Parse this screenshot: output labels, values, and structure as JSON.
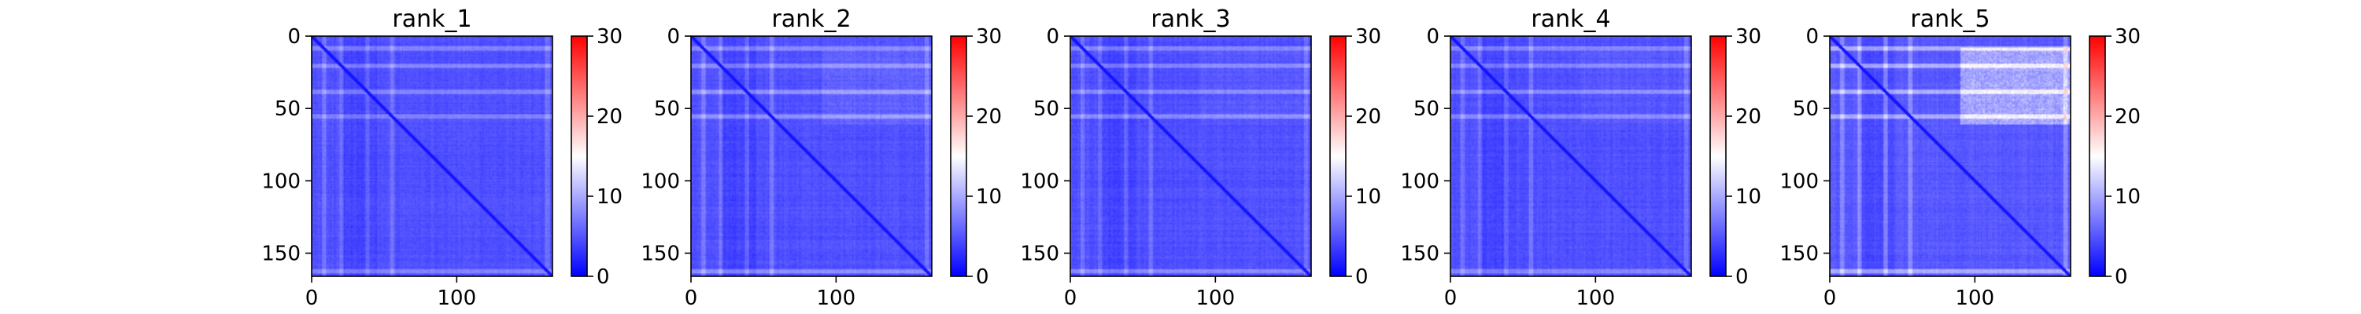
{
  "chart_data": [
    {
      "type": "heatmap",
      "title": "rank_1",
      "matrix_size": 166,
      "xticks": [
        0,
        100
      ],
      "yticks": [
        0,
        50,
        100,
        150
      ],
      "xlim": [
        0,
        166
      ],
      "ylim": [
        166,
        0
      ],
      "colormap": "bwr",
      "colorbar": {
        "vmin": 0,
        "vmax": 30,
        "ticks": [
          0,
          10,
          20,
          30
        ]
      },
      "base_value": 3.5,
      "diagonal_value": 1.0,
      "bright_rows": [
        8,
        20,
        38,
        55,
        162
      ],
      "bright_row_strength": 3.0,
      "highlight_region": {
        "rows": [
          10,
          60
        ],
        "cols": [
          90,
          166
        ],
        "value": 0
      }
    },
    {
      "type": "heatmap",
      "title": "rank_2",
      "matrix_size": 166,
      "xticks": [
        0,
        100
      ],
      "yticks": [
        0,
        50,
        100,
        150
      ],
      "xlim": [
        0,
        166
      ],
      "ylim": [
        166,
        0
      ],
      "colormap": "bwr",
      "colorbar": {
        "vmin": 0,
        "vmax": 30,
        "ticks": [
          0,
          10,
          20,
          30
        ]
      },
      "base_value": 3.5,
      "diagonal_value": 1.0,
      "bright_rows": [
        8,
        20,
        38,
        55,
        162
      ],
      "bright_row_strength": 3.5,
      "highlight_region": {
        "rows": [
          10,
          60
        ],
        "cols": [
          90,
          166
        ],
        "value": 1
      }
    },
    {
      "type": "heatmap",
      "title": "rank_3",
      "matrix_size": 166,
      "xticks": [
        0,
        100
      ],
      "yticks": [
        0,
        50,
        100,
        150
      ],
      "xlim": [
        0,
        166
      ],
      "ylim": [
        166,
        0
      ],
      "colormap": "bwr",
      "colorbar": {
        "vmin": 0,
        "vmax": 30,
        "ticks": [
          0,
          10,
          20,
          30
        ]
      },
      "base_value": 3.5,
      "diagonal_value": 1.0,
      "bright_rows": [
        8,
        20,
        38,
        55,
        162
      ],
      "bright_row_strength": 3.2,
      "highlight_region": {
        "rows": [
          10,
          60
        ],
        "cols": [
          90,
          166
        ],
        "value": 0.5
      }
    },
    {
      "type": "heatmap",
      "title": "rank_4",
      "matrix_size": 166,
      "xticks": [
        0,
        100
      ],
      "yticks": [
        0,
        50,
        100,
        150
      ],
      "xlim": [
        0,
        166
      ],
      "ylim": [
        166,
        0
      ],
      "colormap": "bwr",
      "colorbar": {
        "vmin": 0,
        "vmax": 30,
        "ticks": [
          0,
          10,
          20,
          30
        ]
      },
      "base_value": 3.5,
      "diagonal_value": 1.0,
      "bright_rows": [
        8,
        20,
        38,
        55,
        162
      ],
      "bright_row_strength": 3.2,
      "highlight_region": {
        "rows": [
          10,
          60
        ],
        "cols": [
          90,
          166
        ],
        "value": 0.5
      }
    },
    {
      "type": "heatmap",
      "title": "rank_5",
      "matrix_size": 166,
      "xticks": [
        0,
        100
      ],
      "yticks": [
        0,
        50,
        100,
        150
      ],
      "xlim": [
        0,
        166
      ],
      "ylim": [
        166,
        0
      ],
      "colormap": "bwr",
      "colorbar": {
        "vmin": 0,
        "vmax": 30,
        "ticks": [
          0,
          10,
          20,
          30
        ]
      },
      "base_value": 4.0,
      "diagonal_value": 1.0,
      "bright_rows": [
        8,
        20,
        38,
        55,
        162
      ],
      "bright_row_strength": 5.0,
      "highlight_region": {
        "rows": [
          8,
          60
        ],
        "cols": [
          90,
          166
        ],
        "value": 5
      }
    }
  ]
}
